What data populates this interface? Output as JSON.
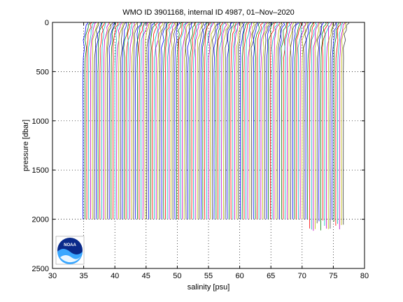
{
  "chart_data": {
    "type": "line",
    "title": "WMO ID 3901168, internal ID 4987, 01–Nov–2020",
    "xlabel": "salinity [psu]",
    "ylabel": "pressure [dbar]",
    "xlim": [
      30,
      80
    ],
    "ylim": [
      2500,
      0
    ],
    "y_reversed": true,
    "x_ticks": [
      30,
      35,
      40,
      45,
      50,
      55,
      60,
      65,
      70,
      75,
      80
    ],
    "y_ticks": [
      0,
      500,
      1000,
      1500,
      2000,
      2500
    ],
    "grid": true,
    "grid_style": "dotted",
    "series_colors": [
      "#0000ff",
      "#008000",
      "#ff0000",
      "#00bfbf",
      "#bf00bf",
      "#bfbf00",
      "#404040"
    ],
    "profiles": {
      "count": 140,
      "first_offset_salinity": 35.0,
      "offset_step_salinity": 0.3,
      "deep_salinity": 34.9,
      "surface_salinity_excess": 0.8,
      "max_pressure_dbar": 2000
    }
  },
  "logo": {
    "text": "NOAA",
    "name": "noaa-logo"
  }
}
